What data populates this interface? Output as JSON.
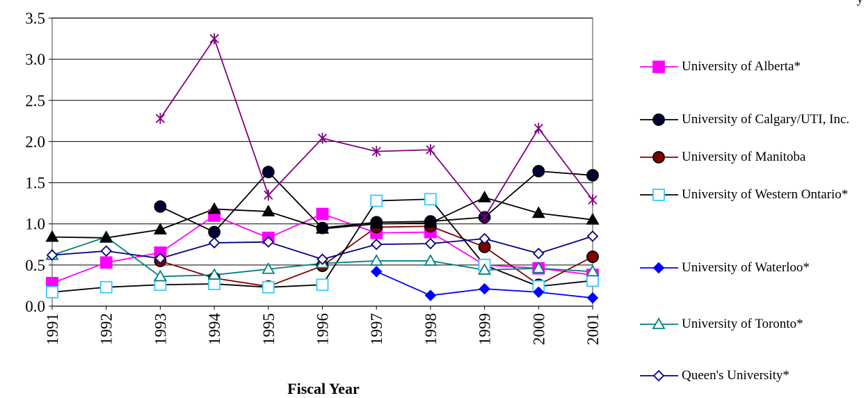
{
  "chart_data": {
    "type": "line",
    "x_axis_label": "Fiscal Year",
    "top_right_text": "y",
    "categories": [
      "1991",
      "1992",
      "1993",
      "1994",
      "1995",
      "1996",
      "1997",
      "1998",
      "1999",
      "2000",
      "2001"
    ],
    "ylim": [
      0,
      3.5
    ],
    "yticks": [
      {
        "value": 0,
        "label": "0.0"
      },
      0.5,
      {
        "value": 1,
        "label": "1.0"
      },
      1.5,
      {
        "value": 2,
        "label": "2.0"
      },
      2.5,
      {
        "value": 3,
        "label": "3.0"
      },
      3.5
    ],
    "grid": true,
    "series": [
      {
        "name": "University of Alberta*",
        "color": "#ff00ff",
        "marker": "square",
        "marker_color": "#ff00ff",
        "filled": true,
        "values": [
          0.28,
          0.53,
          0.65,
          1.1,
          0.83,
          1.12,
          0.89,
          0.9,
          0.5,
          0.46,
          0.38
        ]
      },
      {
        "name": "University of Calgary/UTI, Inc.",
        "color": "#000000",
        "marker": "circle",
        "marker_color": "#000033",
        "filled": true,
        "values": [
          null,
          null,
          1.21,
          0.9,
          1.63,
          0.95,
          1.02,
          1.03,
          1.08,
          1.64,
          1.59
        ]
      },
      {
        "name": "University of Manitoba",
        "color": "#800000",
        "marker": "circle",
        "marker_color": "#800000",
        "filled": true,
        "values": [
          null,
          null,
          0.55,
          0.34,
          0.24,
          0.49,
          0.96,
          0.97,
          0.72,
          0.26,
          0.6
        ]
      },
      {
        "name": "University of Western Ontario*",
        "color": "#000000",
        "marker": "square",
        "marker_color": "#33ccff",
        "filled": false,
        "values": [
          0.17,
          0.23,
          0.26,
          0.27,
          0.23,
          0.26,
          1.28,
          1.3,
          0.5,
          0.24,
          0.31
        ]
      },
      {
        "name": "University of Waterloo*",
        "color": "#0000ff",
        "marker": "diamond",
        "marker_color": "#0000ff",
        "filled": true,
        "values": [
          null,
          null,
          null,
          null,
          null,
          null,
          0.42,
          0.13,
          0.21,
          0.17,
          0.1
        ]
      },
      {
        "name": "University of Toronto*",
        "color": "#008080",
        "marker": "triangle",
        "marker_color": "#008080",
        "filled": false,
        "values": [
          0.62,
          0.84,
          0.36,
          0.38,
          0.45,
          0.52,
          0.55,
          0.55,
          0.44,
          0.46,
          0.42
        ]
      },
      {
        "name": "Queen's University*",
        "color": "#000080",
        "marker": "diamond",
        "marker_color": "#000080",
        "filled": false,
        "values": [
          0.62,
          0.67,
          0.58,
          0.77,
          0.78,
          0.57,
          0.75,
          0.76,
          0.82,
          0.64,
          0.85
        ]
      },
      {
        "color": "#000000",
        "marker": "triangle",
        "marker_color": "#000000",
        "filled": true,
        "values": [
          0.84,
          0.83,
          0.93,
          1.18,
          1.15,
          0.94,
          1.0,
          1.01,
          1.32,
          1.13,
          1.05
        ]
      },
      {
        "color": "#800080",
        "marker": "star",
        "marker_color": "#800080",
        "filled": false,
        "values": [
          null,
          null,
          2.28,
          3.25,
          1.35,
          2.04,
          1.88,
          1.9,
          1.08,
          2.16,
          1.29
        ]
      }
    ]
  }
}
